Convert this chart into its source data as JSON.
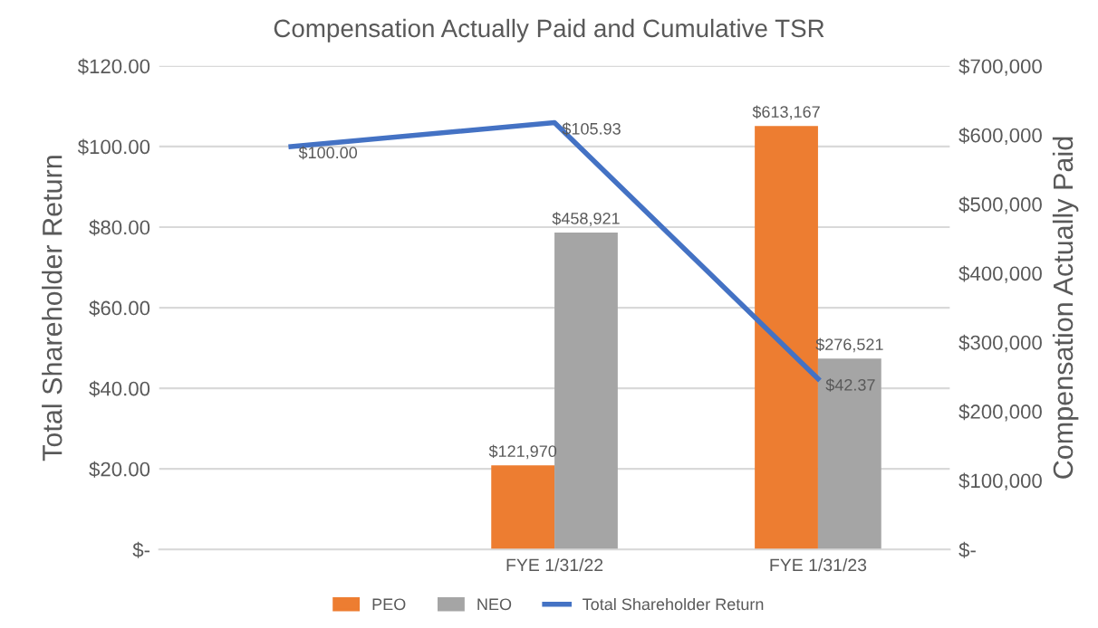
{
  "chart_data": {
    "type": "bar",
    "title": "Compensation Actually Paid and Cumulative TSR",
    "ylabel": "Total Shareholder Return",
    "y2label": "Compensation Actually Paid",
    "categories": [
      null,
      "FYE 1/31/22",
      "FYE 1/31/23"
    ],
    "series": [
      {
        "name": "PEO",
        "color": "#ed7d31",
        "axis": "y2",
        "values": [
          null,
          121970,
          613167
        ],
        "value_labels": [
          null,
          "$121,970",
          "$613,167"
        ]
      },
      {
        "name": "NEO",
        "color": "#a5a5a5",
        "axis": "y2",
        "values": [
          null,
          458921,
          276521
        ],
        "value_labels": [
          null,
          "$458,921",
          "$276,521"
        ]
      },
      {
        "name": "Total Shareholder Return",
        "type": "line",
        "color": "#4472c4",
        "axis": "y",
        "values": [
          100.0,
          105.93,
          42.37
        ],
        "value_labels": [
          "$100.00",
          "$105.93",
          "$42.37"
        ]
      }
    ],
    "ylim": [
      0,
      120
    ],
    "yticks": [
      {
        "value": 0,
        "label": "$-"
      },
      {
        "value": 20,
        "label": "$20.00"
      },
      {
        "value": 40,
        "label": "$40.00"
      },
      {
        "value": 60,
        "label": "$60.00"
      },
      {
        "value": 80,
        "label": "$80.00"
      },
      {
        "value": 100,
        "label": "$100.00"
      },
      {
        "value": 120,
        "label": "$120.00"
      }
    ],
    "y2lim": [
      0,
      700000
    ],
    "y2ticks": [
      {
        "value": 0,
        "label": "$-"
      },
      {
        "value": 100000,
        "label": "$100,000"
      },
      {
        "value": 200000,
        "label": "$200,000"
      },
      {
        "value": 300000,
        "label": "$300,000"
      },
      {
        "value": 400000,
        "label": "$400,000"
      },
      {
        "value": 500000,
        "label": "$500,000"
      },
      {
        "value": 600000,
        "label": "$600,000"
      },
      {
        "value": 700000,
        "label": "$700,000"
      }
    ],
    "grid": "y",
    "legend": "bottom",
    "marker": "none",
    "line_style": "solid"
  }
}
